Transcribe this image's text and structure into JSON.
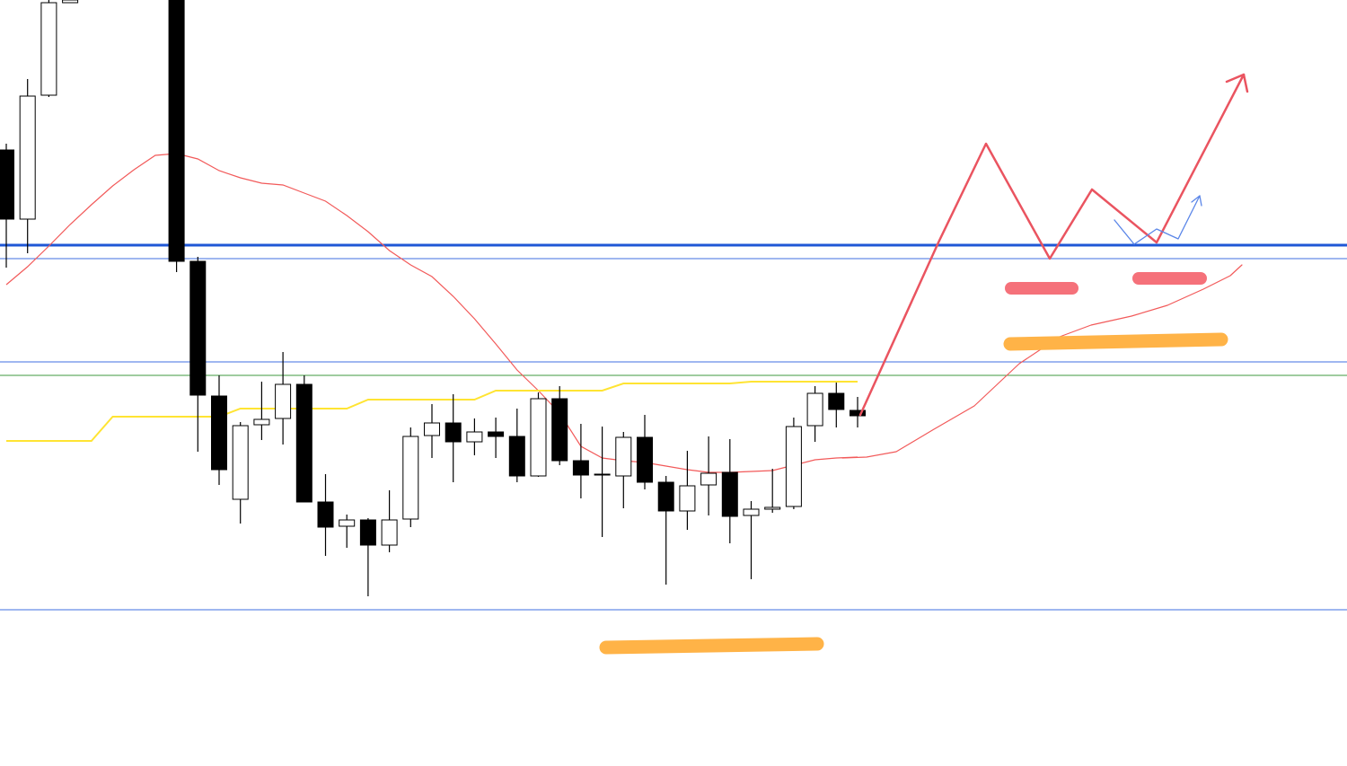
{
  "chart_data": {
    "type": "candlestick",
    "ylim": [
      0,
      853
    ],
    "up_color": "#ffffff",
    "down_color": "#000000",
    "open": [
      686,
      609,
      747,
      850,
      null,
      null,
      null,
      null,
      853,
      562,
      412,
      297,
      380,
      387,
      425,
      294,
      267,
      274,
      246,
      275,
      368,
      382,
      361,
      372,
      367,
      323,
      409,
      340,
      324,
      323,
      366,
      316,
      284,
      313,
      327,
      279,
      286,
      289,
      379,
      415,
      396
    ],
    "high": [
      693,
      765,
      853,
      853,
      null,
      null,
      null,
      null,
      853,
      567,
      435,
      383,
      428,
      461,
      435,
      325,
      280,
      276,
      307,
      377,
      403,
      414,
      387,
      388,
      398,
      416,
      423,
      381,
      378,
      372,
      391,
      323,
      351,
      367,
      364,
      295,
      331,
      388,
      423,
      427,
      411
    ],
    "low": [
      555,
      571,
      745,
      850,
      null,
      null,
      null,
      null,
      550,
      350,
      313,
      270,
      363,
      358,
      294,
      234,
      243,
      189,
      238,
      266,
      343,
      316,
      346,
      343,
      316,
      322,
      335,
      298,
      255,
      287,
      308,
      202,
      263,
      279,
      248,
      208,
      282,
      286,
      361,
      377,
      377
    ],
    "close": [
      609,
      746,
      850,
      853,
      null,
      null,
      null,
      null,
      562,
      413,
      330,
      379,
      386,
      425,
      294,
      266,
      274,
      246,
      274,
      367,
      382,
      361,
      372,
      367,
      323,
      409,
      340,
      324,
      325,
      366,
      316,
      284,
      312,
      326,
      278,
      286,
      288,
      378,
      415,
      397,
      390
    ],
    "series": [
      {
        "color": "#f25a5a",
        "values": [
          536,
          556,
          579,
          603,
          625,
          646,
          664,
          680,
          682,
          676,
          663,
          655,
          649,
          647,
          638,
          629,
          613,
          595,
          574,
          558,
          545,
          523,
          498,
          470,
          441,
          418,
          393,
          356,
          343,
          340,
          338,
          334,
          330,
          327,
          327,
          328,
          329,
          335,
          341,
          343,
          344
        ]
      },
      {
        "color": "#ffe433",
        "values": [
          362,
          362,
          362,
          362,
          362,
          389,
          389,
          389,
          389,
          389,
          389,
          398,
          398,
          398,
          398,
          398,
          398,
          408,
          408,
          408,
          408,
          408,
          408,
          418,
          418,
          418,
          418,
          418,
          418,
          426,
          426,
          426,
          426,
          426,
          426,
          428,
          428,
          428,
          428,
          428,
          428
        ]
      }
    ],
    "levels": [
      {
        "value": 580,
        "color": "#1f57d6",
        "width": 3
      },
      {
        "value": 565,
        "color": "#3f6fe0",
        "width": 1
      },
      {
        "value": 450,
        "color": "#3f6fe0",
        "width": 1
      },
      {
        "value": 435,
        "color": "#3f9a3f",
        "width": 1
      },
      {
        "value": 174,
        "color": "#3f6fe0",
        "width": 1
      }
    ]
  }
}
